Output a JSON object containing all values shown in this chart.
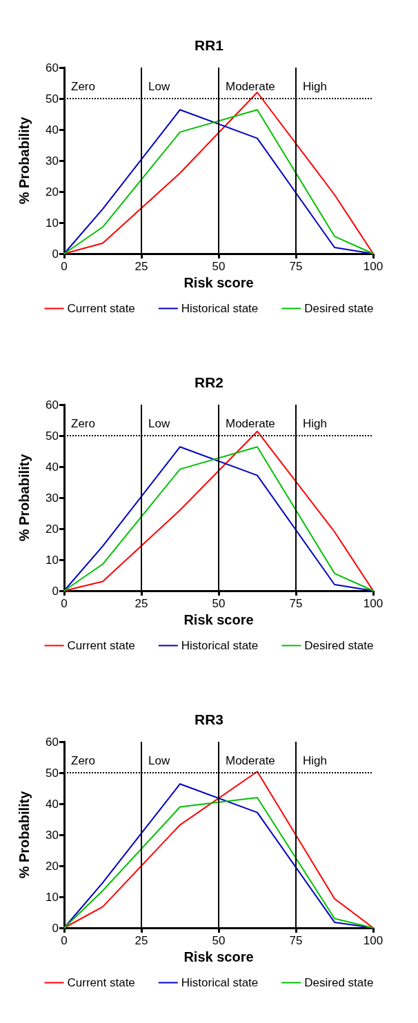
{
  "chart_data": [
    {
      "type": "line",
      "title": "RR1",
      "xlabel": "Risk score",
      "ylabel": "% Probability",
      "x": [
        0,
        12.5,
        37.5,
        62.5,
        87.5,
        100
      ],
      "xlim": [
        0,
        100
      ],
      "xticks": [
        0,
        25,
        50,
        75,
        100
      ],
      "ylim": [
        0,
        60
      ],
      "yticks": [
        0,
        10,
        20,
        30,
        40,
        50,
        60
      ],
      "grid": false,
      "legend": "bottom",
      "marker": "none",
      "line_style": "solid",
      "series": [
        {
          "name": "Current state",
          "color": "#ff0000",
          "values": [
            0,
            3.4,
            26,
            52,
            19,
            0
          ]
        },
        {
          "name": "Historical state",
          "color": "#0000c0",
          "values": [
            0,
            14.4,
            46.4,
            37.2,
            2,
            0
          ]
        },
        {
          "name": "Desired state",
          "color": "#00c000",
          "values": [
            0,
            8.6,
            39.2,
            46.4,
            5.6,
            0
          ]
        }
      ],
      "ref_lines": [
        {
          "axis": "x",
          "value": 25,
          "color": "#000000",
          "line_style": "solid"
        },
        {
          "axis": "x",
          "value": 50,
          "color": "#000000",
          "line_style": "solid"
        },
        {
          "axis": "x",
          "value": 75,
          "color": "#000000",
          "line_style": "solid"
        },
        {
          "axis": "y",
          "value": 50,
          "color": "#000000",
          "line_style": "dotted"
        }
      ],
      "annotations": [
        "Zero",
        "Low",
        "Moderate",
        "High"
      ]
    },
    {
      "type": "line",
      "title": "RR2",
      "xlabel": "Risk score",
      "ylabel": "% Probability",
      "x": [
        0,
        12.5,
        37.5,
        62.5,
        87.5,
        100
      ],
      "xlim": [
        0,
        100
      ],
      "xticks": [
        0,
        25,
        50,
        75,
        100
      ],
      "ylim": [
        0,
        60
      ],
      "yticks": [
        0,
        10,
        20,
        30,
        40,
        50,
        60
      ],
      "grid": false,
      "legend": "bottom",
      "marker": "none",
      "line_style": "solid",
      "series": [
        {
          "name": "Current state",
          "color": "#ff0000",
          "values": [
            0,
            3,
            26,
            51.4,
            19,
            0
          ]
        },
        {
          "name": "Historical state",
          "color": "#0000c0",
          "values": [
            0,
            14.4,
            46.4,
            37.2,
            2,
            0
          ]
        },
        {
          "name": "Desired state",
          "color": "#00c000",
          "values": [
            0,
            8.6,
            39.2,
            46.4,
            5.6,
            0
          ]
        }
      ],
      "ref_lines": [
        {
          "axis": "x",
          "value": 25,
          "color": "#000000",
          "line_style": "solid"
        },
        {
          "axis": "x",
          "value": 50,
          "color": "#000000",
          "line_style": "solid"
        },
        {
          "axis": "x",
          "value": 75,
          "color": "#000000",
          "line_style": "solid"
        },
        {
          "axis": "y",
          "value": 50,
          "color": "#000000",
          "line_style": "dotted"
        }
      ],
      "annotations": [
        "Zero",
        "Low",
        "Moderate",
        "High"
      ]
    },
    {
      "type": "line",
      "title": "RR3",
      "xlabel": "Risk score",
      "ylabel": "% Probability",
      "x": [
        0,
        12.5,
        37.5,
        62.5,
        87.5,
        100
      ],
      "xlim": [
        0,
        100
      ],
      "xticks": [
        0,
        25,
        50,
        75,
        100
      ],
      "ylim": [
        0,
        60
      ],
      "yticks": [
        0,
        10,
        20,
        30,
        40,
        50,
        60
      ],
      "grid": false,
      "legend": "bottom",
      "marker": "none",
      "line_style": "solid",
      "series": [
        {
          "name": "Current state",
          "color": "#ff0000",
          "values": [
            0,
            6.8,
            33.2,
            50.4,
            9.4,
            0
          ]
        },
        {
          "name": "Historical state",
          "color": "#0000c0",
          "values": [
            0,
            14.6,
            46.4,
            37.2,
            1.8,
            0
          ]
        },
        {
          "name": "Desired state",
          "color": "#00c000",
          "values": [
            0,
            12,
            39,
            42,
            3,
            0
          ]
        }
      ],
      "ref_lines": [
        {
          "axis": "x",
          "value": 25,
          "color": "#000000",
          "line_style": "solid"
        },
        {
          "axis": "x",
          "value": 50,
          "color": "#000000",
          "line_style": "solid"
        },
        {
          "axis": "x",
          "value": 75,
          "color": "#000000",
          "line_style": "solid"
        },
        {
          "axis": "y",
          "value": 50,
          "color": "#000000",
          "line_style": "dotted"
        }
      ],
      "annotations": [
        "Zero",
        "Low",
        "Moderate",
        "High"
      ]
    }
  ]
}
